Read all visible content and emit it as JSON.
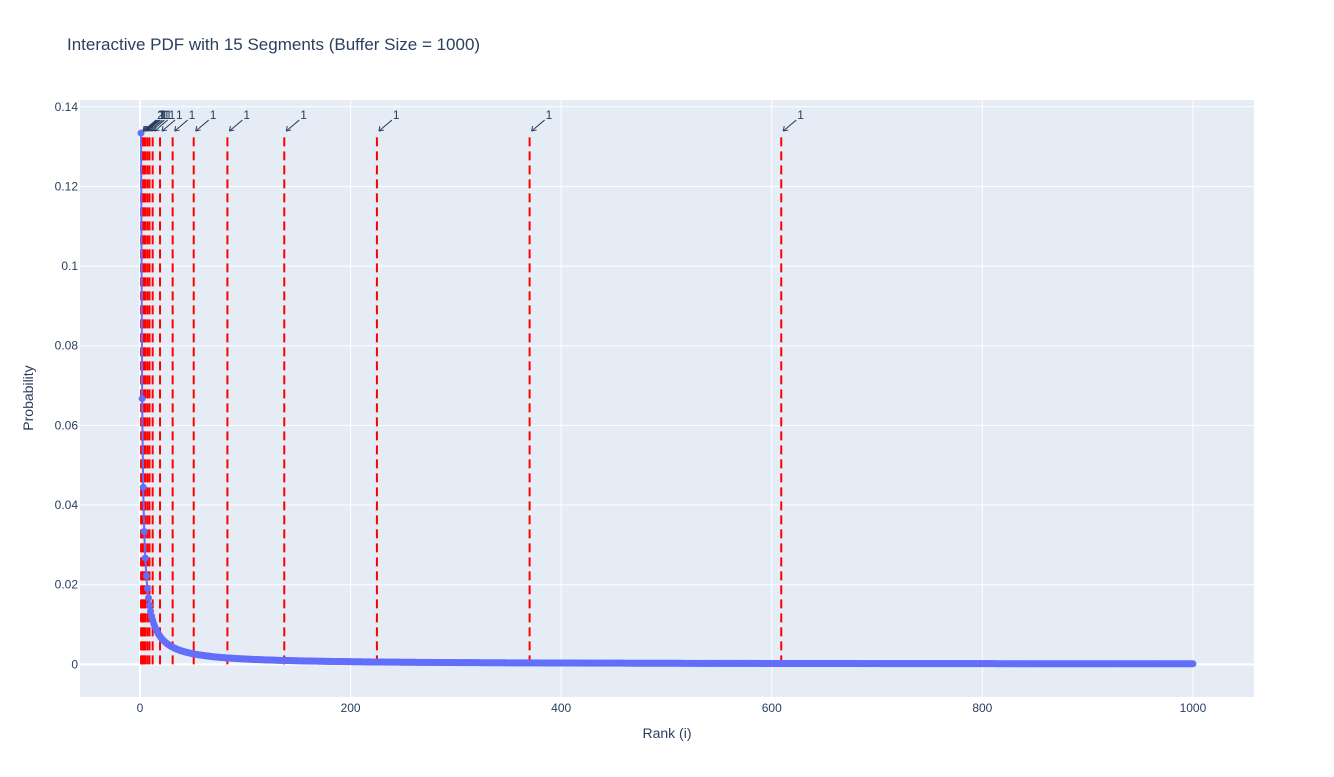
{
  "chart_data": {
    "type": "line",
    "title": "Interactive PDF with 15 Segments (Buffer Size = 1000)",
    "xlabel": "Rank (i)",
    "ylabel": "Probability",
    "xlim": [
      -57,
      1058
    ],
    "ylim": [
      -0.0082,
      0.1417
    ],
    "xticks": [
      0,
      200,
      400,
      600,
      800,
      1000
    ],
    "yticks": [
      0,
      0.02,
      0.04,
      0.06,
      0.08,
      0.1,
      0.12,
      0.14
    ],
    "ytick_labels": [
      "0",
      "0.02",
      "0.04",
      "0.06",
      "0.08",
      "0.1",
      "0.12",
      "0.14"
    ],
    "grid": true,
    "series": [
      {
        "name": "",
        "mode": "lines+markers",
        "color": "#636efa",
        "normalizer": 0.1334,
        "x_range": [
          1,
          1000
        ],
        "x": [
          1,
          2,
          3,
          4,
          5,
          6,
          7,
          8,
          10,
          15,
          20,
          30,
          50,
          83,
          100,
          137,
          200,
          225,
          300,
          370,
          400,
          500,
          609,
          700,
          800,
          900,
          1000
        ],
        "y": [
          0.1334,
          0.0667,
          0.0445,
          0.0334,
          0.0267,
          0.0222,
          0.0191,
          0.0167,
          0.0133,
          0.0089,
          0.0067,
          0.0044,
          0.0027,
          0.0016,
          0.0013,
          0.001,
          0.0007,
          0.0006,
          0.0004,
          0.0004,
          0.0003,
          0.0003,
          0.0002,
          0.0002,
          0.0002,
          0.0001,
          0.0001
        ]
      }
    ],
    "segment_lines": {
      "color": "#ff0000",
      "dash": "dash",
      "x": [
        1,
        2,
        3,
        4,
        5,
        7,
        9,
        12,
        19,
        31,
        51,
        83,
        137,
        225,
        370,
        609
      ],
      "y_top": 0.1334
    },
    "annotations": [
      {
        "x": 1,
        "y": 0.1334,
        "text": "2"
      },
      {
        "x": 2,
        "y": 0.1334,
        "text": "1"
      },
      {
        "x": 3,
        "y": 0.1334,
        "text": "1"
      },
      {
        "x": 4,
        "y": 0.1334,
        "text": "1"
      },
      {
        "x": 5,
        "y": 0.1334,
        "text": "1"
      },
      {
        "x": 7,
        "y": 0.1334,
        "text": "1"
      },
      {
        "x": 9,
        "y": 0.1334,
        "text": "1"
      },
      {
        "x": 12,
        "y": 0.1334,
        "text": "1"
      },
      {
        "x": 19,
        "y": 0.1334,
        "text": "1"
      },
      {
        "x": 31,
        "y": 0.1334,
        "text": "1"
      },
      {
        "x": 51,
        "y": 0.1334,
        "text": "1"
      },
      {
        "x": 83,
        "y": 0.1334,
        "text": "1"
      },
      {
        "x": 137,
        "y": 0.1334,
        "text": "1"
      },
      {
        "x": 225,
        "y": 0.1334,
        "text": "1"
      },
      {
        "x": 370,
        "y": 0.1334,
        "text": "1"
      },
      {
        "x": 609,
        "y": 0.1334,
        "text": "1"
      }
    ],
    "colors": {
      "plot_bg": "#e5ecf6",
      "grid": "#ffffff",
      "series": "#636efa",
      "segment": "#ff0000",
      "text": "#2a3f5f"
    }
  }
}
